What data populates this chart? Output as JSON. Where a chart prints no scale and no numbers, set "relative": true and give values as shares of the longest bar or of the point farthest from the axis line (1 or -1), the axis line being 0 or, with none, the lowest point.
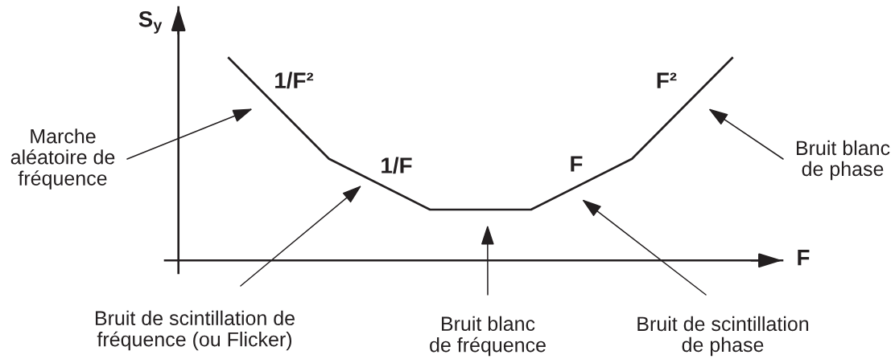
{
  "chart_data": {
    "type": "line",
    "relative": true,
    "xlabel": "F",
    "ylabel": "S$_{y}$",
    "categories": [
      null,
      null,
      null,
      null,
      null,
      null
    ],
    "series": [
      {
        "color": "#231f20",
        "values": [
          1,
          0.5,
          0.25,
          0.25,
          0.5,
          1
        ]
      }
    ],
    "annotations": [
      "1/F²",
      "1/F",
      "F",
      "F²",
      "Marche\naléatoire de\nfréquence",
      "Bruit blanc\nde phase",
      "Bruit de scintillation de\nfréquence (ou Flicker)",
      "Bruit blanc\nde fréquence",
      "Bruit de scintillation\nde phase"
    ]
  }
}
